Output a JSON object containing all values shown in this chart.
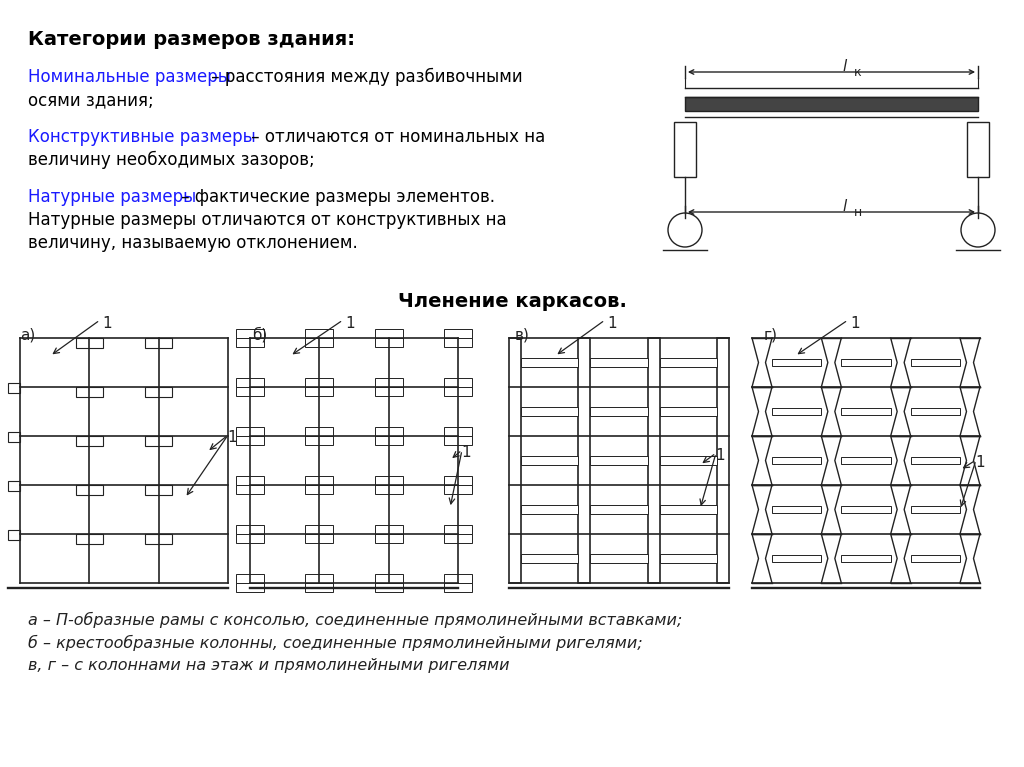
{
  "title": "Категории размеров здания:",
  "line1_blue": "Номинальные размеры",
  "line1_black1": " – расстояния между разбивочными",
  "line1_black2": "осями здания;",
  "line2_blue": "Конструктивные размеры",
  "line2_black1": " – отличаются от номинальных на",
  "line2_black2": "величину необходимых зазоров;",
  "line3_blue": "Натурные размеры",
  "line3_black1": " – фактические размеры элементов.",
  "line3_black2": "Натурные размеры отличаются от конструктивных на",
  "line3_black3": "величину, называемую отклонением.",
  "section_title": "Членение каркасов.",
  "caption_a": "а – П-образные рамы с консолью, соединенные прямолинейными вставками;",
  "caption_b": "б – крестообразные колонны, соединенные прямолинейными ригелями;",
  "caption_c": "в, г – с колоннами на этаж и прямолинейными ригелями",
  "bg_color": "#ffffff",
  "text_color": "#000000",
  "blue_color": "#1a1aff",
  "diagram_color": "#222222"
}
